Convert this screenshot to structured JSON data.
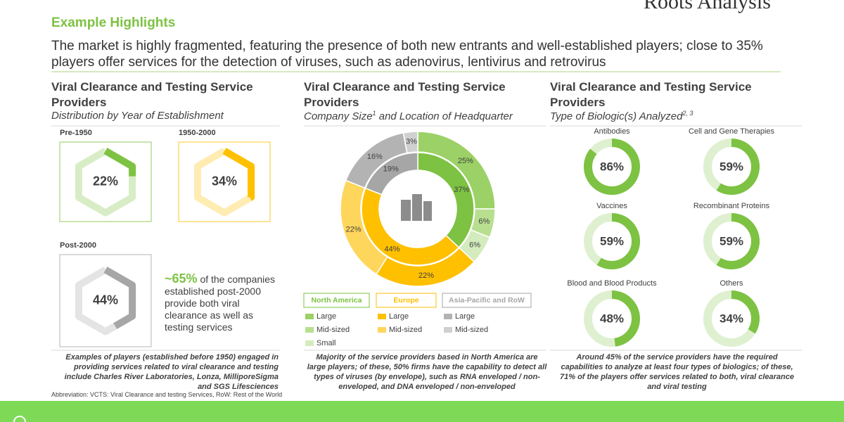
{
  "header": {
    "title": "Example Highlights",
    "subtitle": "The market is highly fragmented, featuring the presence of both new entrants and well-established players; close to 35% players offer services for the detection of viruses, such as adenovirus, lentivirus and retrovirus",
    "logo": "Roots Analysis"
  },
  "panels": [
    {
      "title": "Viral Clearance and Testing Service Providers",
      "subtitle": "Distribution by Year of Establishment",
      "items": [
        {
          "label": "Pre-1950",
          "value": 22,
          "value_label": "22%",
          "color": "#7dc242"
        },
        {
          "label": "1950-2000",
          "value": 34,
          "value_label": "34%",
          "color": "#ffc000"
        },
        {
          "label": "Post-2000",
          "value": 44,
          "value_label": "44%",
          "color": "#a6a6a6"
        }
      ],
      "callout": {
        "value_label": "~65%",
        "text": "of the companies established post-2000 provide both viral clearance as well as testing services"
      },
      "footnote": "Examples of players (established before 1950) engaged in providing services related to viral clearance and testing include Charles River Laboratories, Lonza, MilliporeSigma and SGS Lifesciences"
    },
    {
      "title": "Viral Clearance and Testing Service Providers",
      "subtitle": "Company Size",
      "subtitle_sup": "1",
      "subtitle_end": " and Location of Headquarter",
      "regions": [
        {
          "name": "North America",
          "color": "#7dc242",
          "value": 37,
          "value_label": "37%",
          "segments": [
            {
              "name": "Large",
              "color": "#9bd166",
              "value": 25,
              "value_label": "25%"
            },
            {
              "name": "Mid-sized",
              "color": "#b7df8f",
              "value": 6,
              "value_label": "6%"
            },
            {
              "name": "Small",
              "color": "#d4ecbd",
              "value": 6,
              "value_label": "6%"
            }
          ]
        },
        {
          "name": "Europe",
          "color": "#ffc000",
          "value": 44,
          "value_label": "44%",
          "segments": [
            {
              "name": "Large",
              "color": "#ffc000",
              "value": 22,
              "value_label": "22%"
            },
            {
              "name": "Mid-sized",
              "color": "#ffd65c",
              "value": 22,
              "value_label": "22%"
            }
          ]
        },
        {
          "name": "Asia-Pacific and RoW",
          "color": "#a6a6a6",
          "value": 19,
          "value_label": "19%",
          "segments": [
            {
              "name": "Large",
              "color": "#b3b3b3",
              "value": 16,
              "value_label": "16%"
            },
            {
              "name": "Mid-sized",
              "color": "#d0d0d0",
              "value": 3,
              "value_label": "3%"
            }
          ]
        }
      ],
      "footnote": "Majority of the service providers based in North America are large players; of these, 50% firms have the capability to detect all types of viruses (by envelope), such as RNA enveloped / non-enveloped, and DNA enveloped / non-enveloped"
    },
    {
      "title": "Viral Clearance and Testing Service Providers",
      "subtitle": "Type of Biologic(s) Analyzed",
      "subtitle_sup": "2, 3",
      "items": [
        {
          "label": "Antibodies",
          "value": 86,
          "value_label": "86%"
        },
        {
          "label": "Cell and Gene Therapies",
          "value": 59,
          "value_label": "59%"
        },
        {
          "label": "Vaccines",
          "value": 59,
          "value_label": "59%"
        },
        {
          "label": "Recombinant Proteins",
          "value": 59,
          "value_label": "59%"
        },
        {
          "label": "Blood and Blood Products",
          "value": 48,
          "value_label": "48%"
        },
        {
          "label": "Others",
          "value": 34,
          "value_label": "34%"
        }
      ],
      "color": "#7dc242",
      "footnote": "Around 45% of the service providers have the required capabilities to analyze at least four types of biologics; of these, 71% of the players offer services related to both, viral clearance and viral testing"
    }
  ],
  "abbreviation": "Abbreviation: VCTS: Viral Clearance and testing Services, RoW: Rest of the World"
}
